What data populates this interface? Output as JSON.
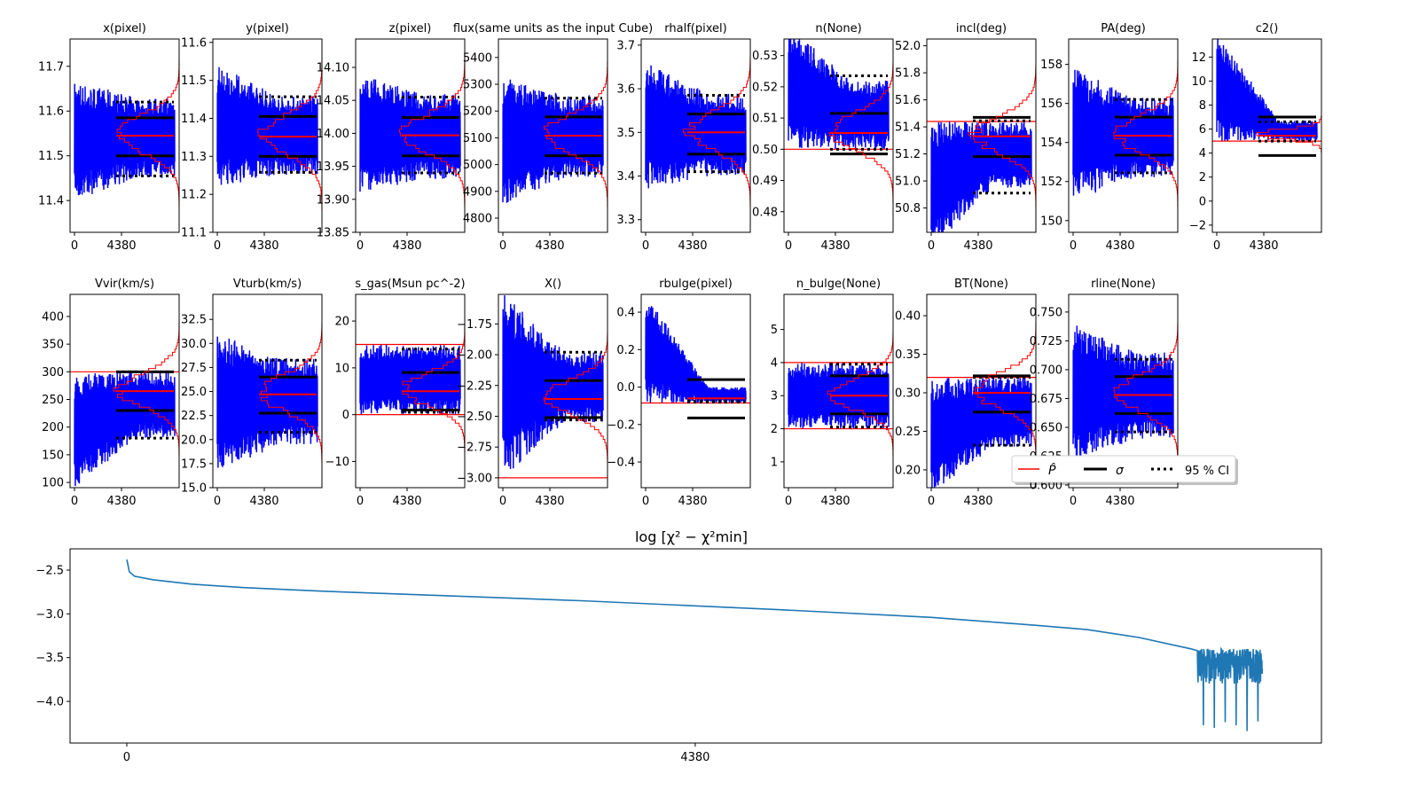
{
  "chart_data": [
    {
      "type": "line",
      "title": "x(pixel)",
      "ylim": [
        11.329,
        11.761
      ],
      "yticks": [
        11.4,
        11.5,
        11.6,
        11.7
      ],
      "estimate": 11.545,
      "sigma": [
        11.5,
        11.585
      ],
      "ci95": [
        11.455,
        11.62
      ],
      "trace_start": [
        11.4,
        11.67
      ],
      "trace_end": [
        11.45,
        11.63
      ]
    },
    {
      "type": "line",
      "title": "y(pixel)",
      "ylim": [
        11.1,
        11.609
      ],
      "yticks": [
        11.1,
        11.2,
        11.3,
        11.4,
        11.5,
        11.6
      ],
      "estimate": 11.352,
      "sigma": [
        11.3,
        11.405
      ],
      "ci95": [
        11.258,
        11.457
      ],
      "trace_start": [
        11.22,
        11.54
      ],
      "trace_end": [
        11.25,
        11.46
      ]
    },
    {
      "type": "line",
      "title": "z(pixel)",
      "ylim": [
        13.85,
        14.143
      ],
      "yticks": [
        13.85,
        13.9,
        13.95,
        14.0,
        14.05,
        14.1
      ],
      "estimate": 13.997,
      "sigma": [
        13.966,
        14.024
      ],
      "ci95": [
        13.94,
        14.055
      ],
      "trace_start": [
        13.91,
        14.09
      ],
      "trace_end": [
        13.93,
        14.06
      ]
    },
    {
      "type": "line",
      "title": "flux(same units as the input Cube)",
      "ylim": [
        4747,
        5469
      ],
      "yticks": [
        4800,
        4900,
        5000,
        5100,
        5200,
        5300,
        5400
      ],
      "estimate": 5108,
      "sigma": [
        5033,
        5178
      ],
      "ci95": [
        4968,
        5248
      ],
      "trace_start": [
        4850,
        5330
      ],
      "trace_end": [
        4950,
        5260
      ]
    },
    {
      "type": "line",
      "title": "rhalf(pixel)",
      "ylim": [
        3.271,
        3.714
      ],
      "yticks": [
        3.3,
        3.4,
        3.5,
        3.6,
        3.7
      ],
      "estimate": 3.5,
      "sigma": [
        3.45,
        3.542
      ],
      "ci95": [
        3.41,
        3.585
      ],
      "trace_start": [
        3.37,
        3.66
      ],
      "trace_end": [
        3.4,
        3.59
      ]
    },
    {
      "type": "line",
      "title": "n(None)",
      "ylim": [
        0.4734,
        0.5353
      ],
      "yticks": [
        0.48,
        0.49,
        0.5,
        0.51,
        0.52,
        0.53
      ],
      "estimate": 0.5052,
      "sigma": [
        0.4985,
        0.5115
      ],
      "ci95": [
        0.5,
        0.5235
      ],
      "trace_start": [
        0.5,
        0.54
      ],
      "trace_end": [
        0.5,
        0.522
      ],
      "bounds": [
        0.5
      ]
    },
    {
      "type": "line",
      "title": "incl(deg)",
      "ylim": [
        50.62,
        52.05
      ],
      "yticks": [
        50.8,
        51.0,
        51.2,
        51.4,
        51.6,
        51.8,
        52.0
      ],
      "estimate": 51.33,
      "sigma": [
        51.18,
        51.47
      ],
      "ci95": [
        50.91,
        51.445
      ],
      "trace_start": [
        50.5,
        51.44
      ],
      "trace_end": [
        50.95,
        51.44
      ],
      "bounds": [
        51.44
      ]
    },
    {
      "type": "line",
      "title": "PA(deg)",
      "ylim": [
        149.4,
        159.3
      ],
      "yticks": [
        150,
        152,
        154,
        156,
        158
      ],
      "estimate": 154.35,
      "sigma": [
        153.35,
        155.3
      ],
      "ci95": [
        152.45,
        156.2
      ],
      "trace_start": [
        151.0,
        157.8
      ],
      "trace_end": [
        152.2,
        156.3
      ]
    },
    {
      "type": "line",
      "title": "c2()",
      "ylim": [
        -2.6,
        13.5
      ],
      "yticks": [
        -2,
        0,
        2,
        4,
        6,
        8,
        10,
        12
      ],
      "estimate": 5.45,
      "sigma": [
        3.8,
        7.0
      ],
      "ci95": [
        5.0,
        6.6
      ],
      "trace_start": [
        5.0,
        14
      ],
      "trace_end": [
        5.0,
        6.7
      ],
      "bounds": [
        5.0
      ]
    },
    {
      "type": "line",
      "title": "Vvir(km/s)",
      "ylim": [
        90.5,
        440
      ],
      "yticks": [
        100,
        150,
        200,
        250,
        300,
        350,
        400
      ],
      "estimate": 265,
      "sigma": [
        230,
        300
      ],
      "ci95": [
        180,
        300
      ],
      "trace_start": [
        90,
        298
      ],
      "trace_end": [
        180,
        300
      ],
      "bounds": [
        300
      ]
    },
    {
      "type": "line",
      "title": "Vturb(km/s)",
      "ylim": [
        15.0,
        35.1
      ],
      "yticks": [
        15.0,
        17.5,
        20.0,
        22.5,
        25.0,
        27.5,
        30.0,
        32.5
      ],
      "estimate": 24.7,
      "sigma": [
        22.75,
        26.5
      ],
      "ci95": [
        20.75,
        28.25
      ],
      "trace_start": [
        16.5,
        31.0
      ],
      "trace_end": [
        19.5,
        28.5
      ]
    },
    {
      "type": "line",
      "title": "s_gas(Msun pc^-2)",
      "ylim": [
        -15.6,
        25.7
      ],
      "yticks": [
        -10,
        0,
        10,
        20
      ],
      "estimate": 5,
      "sigma": [
        1,
        9
      ],
      "ci95": [
        0.5,
        14
      ],
      "trace_start": [
        0,
        15
      ],
      "trace_end": [
        0,
        15
      ],
      "bounds": [
        0,
        15
      ]
    },
    {
      "type": "line",
      "title": "X()",
      "ylim": [
        -3.08,
        -1.51
      ],
      "yticks": [
        -3.0,
        -2.75,
        -2.5,
        -2.25,
        -2.0,
        -1.75
      ],
      "estimate": -2.36,
      "sigma": [
        -2.51,
        -2.21
      ],
      "ci95": [
        -2.53,
        -1.98
      ],
      "trace_start": [
        -3.0,
        -1.5
      ],
      "trace_end": [
        -2.55,
        -1.98
      ],
      "bounds": [
        -3.0
      ]
    },
    {
      "type": "line",
      "title": "rbulge(pixel)",
      "ylim": [
        -0.537,
        0.495
      ],
      "yticks": [
        -0.4,
        -0.2,
        0.0,
        0.2,
        0.4
      ],
      "estimate": -0.06,
      "sigma": [
        -0.165,
        0.04
      ],
      "ci95": [
        -0.08,
        -0.075
      ],
      "trace_start": [
        -0.085,
        0.5
      ],
      "trace_end": [
        -0.085,
        0.0
      ],
      "bounds": [
        -0.085
      ]
    },
    {
      "type": "line",
      "title": "n_bulge(None)",
      "ylim": [
        0.22,
        6.06
      ],
      "yticks": [
        1,
        2,
        3,
        4,
        5
      ],
      "estimate": 3.0,
      "sigma": [
        2.45,
        3.6
      ],
      "ci95": [
        2.05,
        3.95
      ],
      "trace_start": [
        2.0,
        4.0
      ],
      "trace_end": [
        2.0,
        4.0
      ],
      "bounds": [
        2.0,
        4.0
      ]
    },
    {
      "type": "line",
      "title": "BT(None)",
      "ylim": [
        0.1769,
        0.4277
      ],
      "yticks": [
        0.2,
        0.25,
        0.3,
        0.35,
        0.4
      ],
      "estimate": 0.3,
      "sigma": [
        0.275,
        0.322
      ],
      "ci95": [
        0.232,
        0.32
      ],
      "trace_start": [
        0.17,
        0.32
      ],
      "trace_end": [
        0.23,
        0.32
      ],
      "bounds": [
        0.32
      ]
    },
    {
      "type": "line",
      "title": "rline(None)",
      "ylim": [
        0.5977,
        0.7653
      ],
      "yticks": [
        0.6,
        0.625,
        0.65,
        0.675,
        0.7,
        0.725,
        0.75
      ],
      "estimate": 0.678,
      "sigma": [
        0.662,
        0.694
      ],
      "ci95": [
        0.646,
        0.709
      ],
      "trace_start": [
        0.62,
        0.74
      ],
      "trace_end": [
        0.64,
        0.715
      ]
    },
    {
      "type": "line",
      "title": "log  [χ² − χ²min]",
      "title_tex": "log  [χ² − χ²_min]",
      "xlim": [
        -437,
        9205
      ],
      "ylim": [
        -4.476,
        -2.257
      ],
      "xticks": [
        0,
        4380
      ],
      "yticks": [
        -2.5,
        -3.0,
        -3.5,
        -4.0
      ],
      "x": [
        0,
        20,
        60,
        200,
        500,
        900,
        1500,
        2400,
        3500,
        5000,
        6200,
        7000,
        7400,
        7800,
        8200,
        8250
      ],
      "y": [
        -2.38,
        -2.52,
        -2.57,
        -2.61,
        -2.66,
        -2.7,
        -2.74,
        -2.79,
        -2.85,
        -2.95,
        -3.04,
        -3.13,
        -3.18,
        -3.27,
        -3.4,
        -3.42
      ],
      "noisy_tail": {
        "x": [
          8250,
          8750
        ],
        "range": [
          -3.9,
          -3.4
        ],
        "min": -4.37
      }
    }
  ],
  "xtick_labels": [
    "0",
    "4380"
  ],
  "legend": [
    {
      "label": "P̂",
      "style": "red solid"
    },
    {
      "label": "σ",
      "style": "black solid"
    },
    {
      "label": "95 % CI",
      "style": "black dotted"
    }
  ],
  "colors": {
    "trace": "#0000ff",
    "estimate": "#ff0000",
    "sigma": "#000000",
    "chi2": "#1f77b4"
  }
}
